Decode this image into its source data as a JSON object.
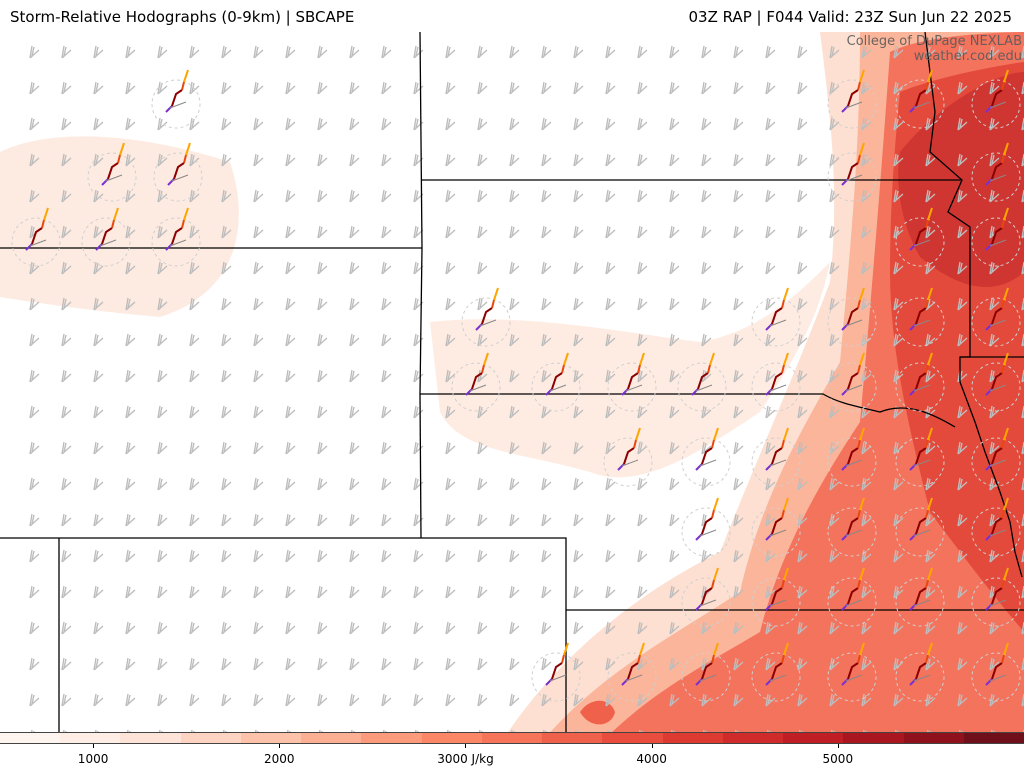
{
  "header": {
    "title": "Storm-Relative Hodographs (0-9km) | SBCAPE",
    "run_info": "03Z RAP | F044 Valid: 23Z Sun Jun 22 2025"
  },
  "credit": {
    "line1": "College of DuPage NEXLAB",
    "line2": "weather.cod.edu"
  },
  "colorbar": {
    "units": "J/kg",
    "ticks": [
      {
        "value": 1000,
        "label": "1000"
      },
      {
        "value": 2000,
        "label": "2000"
      },
      {
        "value": 3000,
        "label": "3000 J/kg"
      },
      {
        "value": 4000,
        "label": "4000"
      },
      {
        "value": 5000,
        "label": "5000"
      }
    ],
    "range": [
      500,
      6000
    ],
    "colors": [
      "#fff5f0",
      "#ffeee6",
      "#fee4d8",
      "#fdd4c2",
      "#fcc2aa",
      "#fcaf93",
      "#fc9b7c",
      "#fb8767",
      "#f67459",
      "#f0614b",
      "#e94d3e",
      "#dd3b32",
      "#cf2b2a",
      "#bf1f24",
      "#aa1620",
      "#8e111c",
      "#6e0f19"
    ]
  },
  "map": {
    "field": "SBCAPE",
    "overlay": "storm-relative hodographs 0-9km",
    "palette": {
      "border": "#000000",
      "barb": "#bdbdbd",
      "hodo_low": "#7b2fd0",
      "hodo_mid": "#8b0000",
      "hodo_upper": "#e8470f",
      "hodo_top": "#ffa500"
    }
  }
}
